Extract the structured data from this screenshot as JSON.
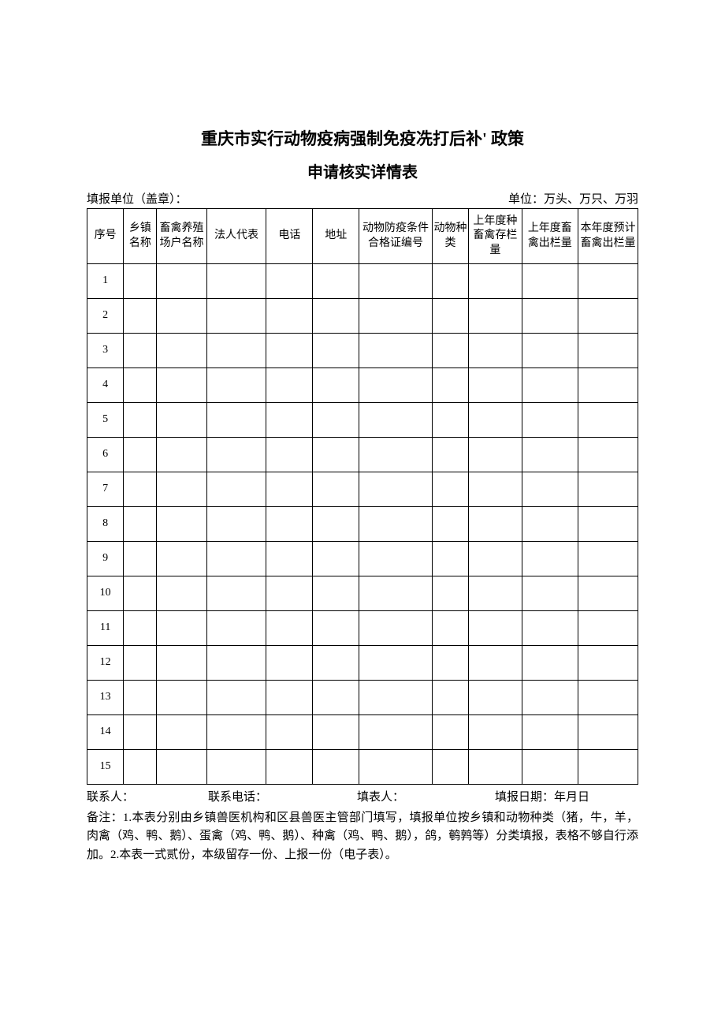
{
  "title_main": "重庆市实行动物疫病强制免疫冼打后补' 政策",
  "title_sub": "申请核实详情表",
  "header_left": "填报单位（盖章）：",
  "header_right": "单位：万头、万只、万羽",
  "columns": [
    "序号",
    "乡镇名称",
    "畜禽养殖场户名称",
    "法人代表",
    "电话",
    "地址",
    "动物防疫条件合格证编号",
    "动物种类",
    "上年度种畜禽存栏量",
    "上年度畜禽出栏量",
    "本年度预计畜禽出栏量"
  ],
  "rows": [
    {
      "seq": "1"
    },
    {
      "seq": "2"
    },
    {
      "seq": "3"
    },
    {
      "seq": "4"
    },
    {
      "seq": "5"
    },
    {
      "seq": "6"
    },
    {
      "seq": "7"
    },
    {
      "seq": "8"
    },
    {
      "seq": "9"
    },
    {
      "seq": "10"
    },
    {
      "seq": "11"
    },
    {
      "seq": "12"
    },
    {
      "seq": "13"
    },
    {
      "seq": "14"
    },
    {
      "seq": "15"
    }
  ],
  "footer_contact": "联系人：",
  "footer_phone": "联系电话：",
  "footer_filler": "填表人：",
  "footer_date": "填报日期：年月日",
  "notes": "备注：1.本表分别由乡镇兽医机构和区县兽医主管部门填写，填报单位按乡镇和动物种类（猪，牛，羊，肉禽（鸡、鸭、鹅）、蛋禽（鸡、鸭、鹅）、种禽（鸡、鸭、鹅），鸽，鹌鹑等）分类填报，表格不够自行添加。2.本表一式贰份，本级留存一份、上报一份（电子表）。"
}
